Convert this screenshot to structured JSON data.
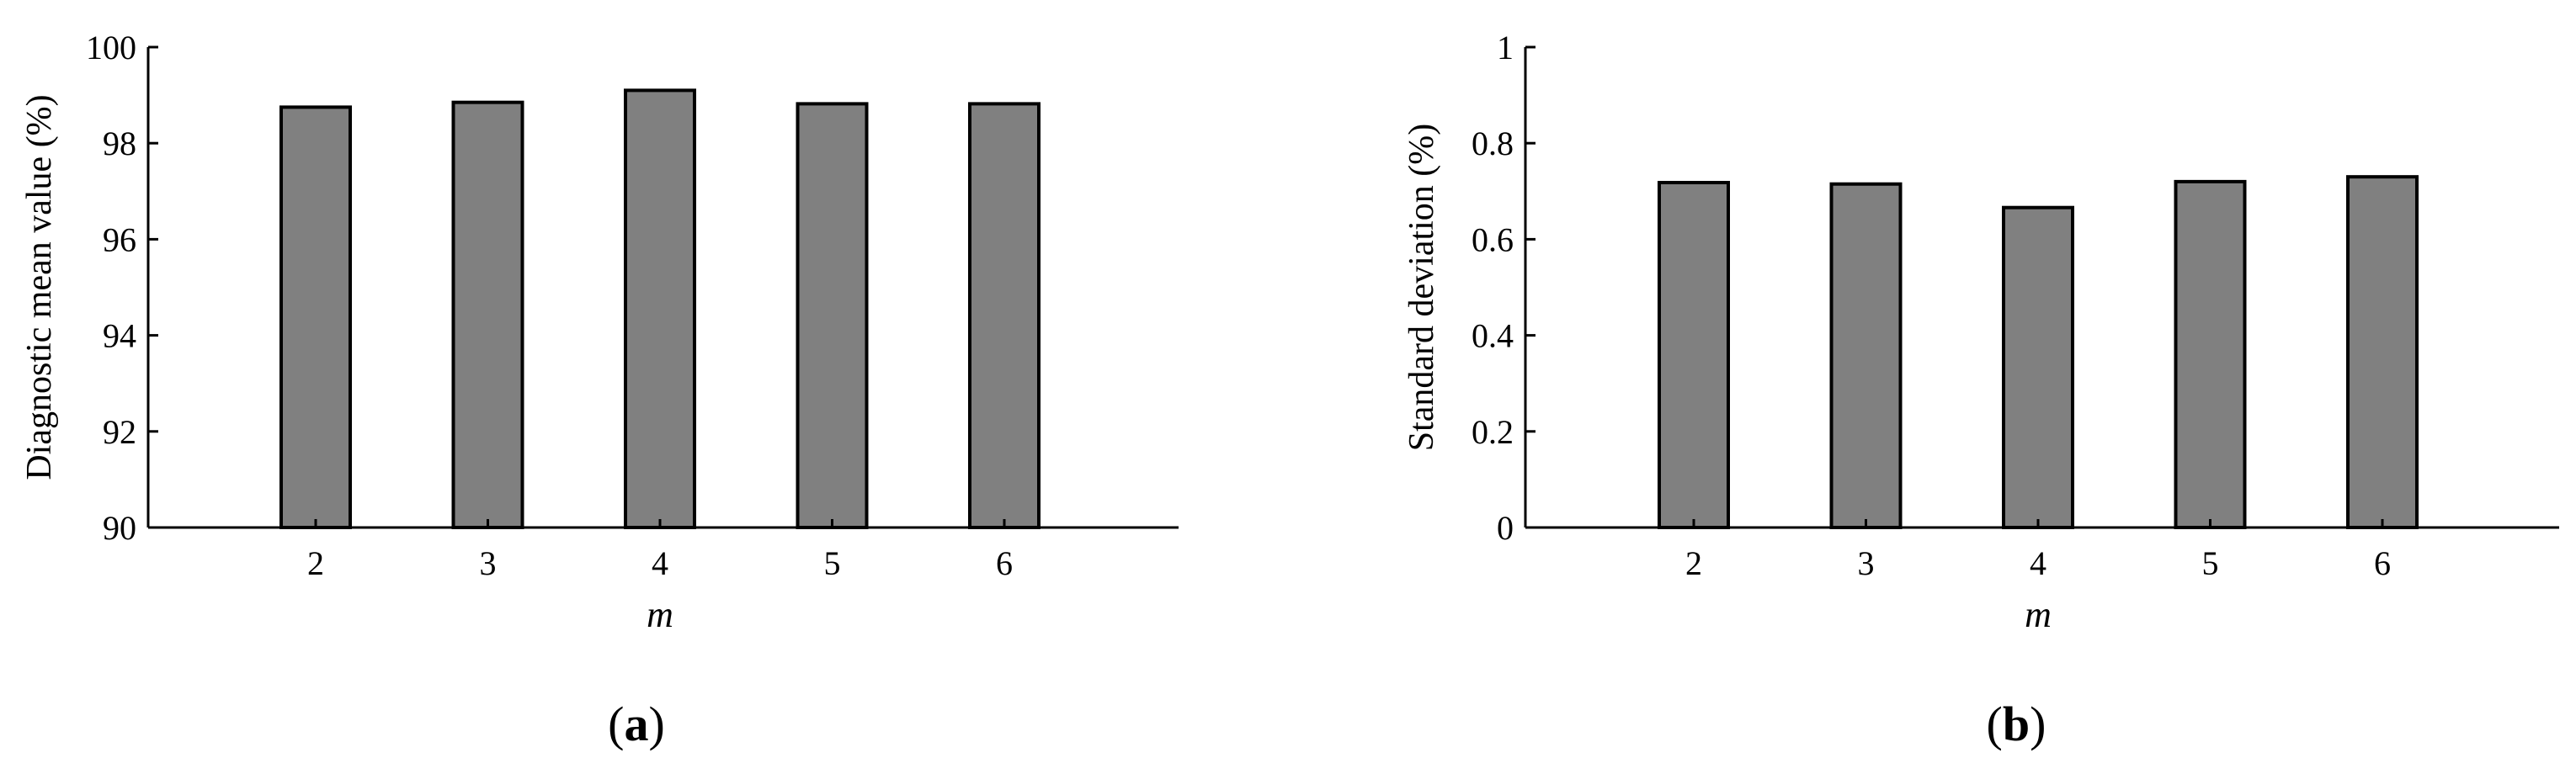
{
  "figure": {
    "bar_fill": "#808080",
    "bar_stroke": "#000000",
    "axis_color": "#000000"
  },
  "chart_data": [
    {
      "type": "bar",
      "panel": "(a)",
      "panel_letter": "a",
      "categories": [
        "2",
        "3",
        "4",
        "5",
        "6"
      ],
      "values": [
        98.75,
        98.85,
        99.1,
        98.82,
        98.82
      ],
      "xlabel": "m",
      "ylabel": "Diagnostic mean value (%)",
      "ylim": [
        90,
        100
      ],
      "yticks": [
        "90",
        "92",
        "94",
        "96",
        "98",
        "100"
      ],
      "grid": false
    },
    {
      "type": "bar",
      "panel": "(b)",
      "panel_letter": "b",
      "categories": [
        "2",
        "3",
        "4",
        "5",
        "6"
      ],
      "values": [
        0.718,
        0.715,
        0.666,
        0.72,
        0.73
      ],
      "xlabel": "m",
      "ylabel": "Standard deviation (%)",
      "ylim": [
        0,
        1
      ],
      "yticks": [
        "0",
        "0.2",
        "0.4",
        "0.6",
        "0.8",
        "1"
      ],
      "grid": false
    }
  ]
}
